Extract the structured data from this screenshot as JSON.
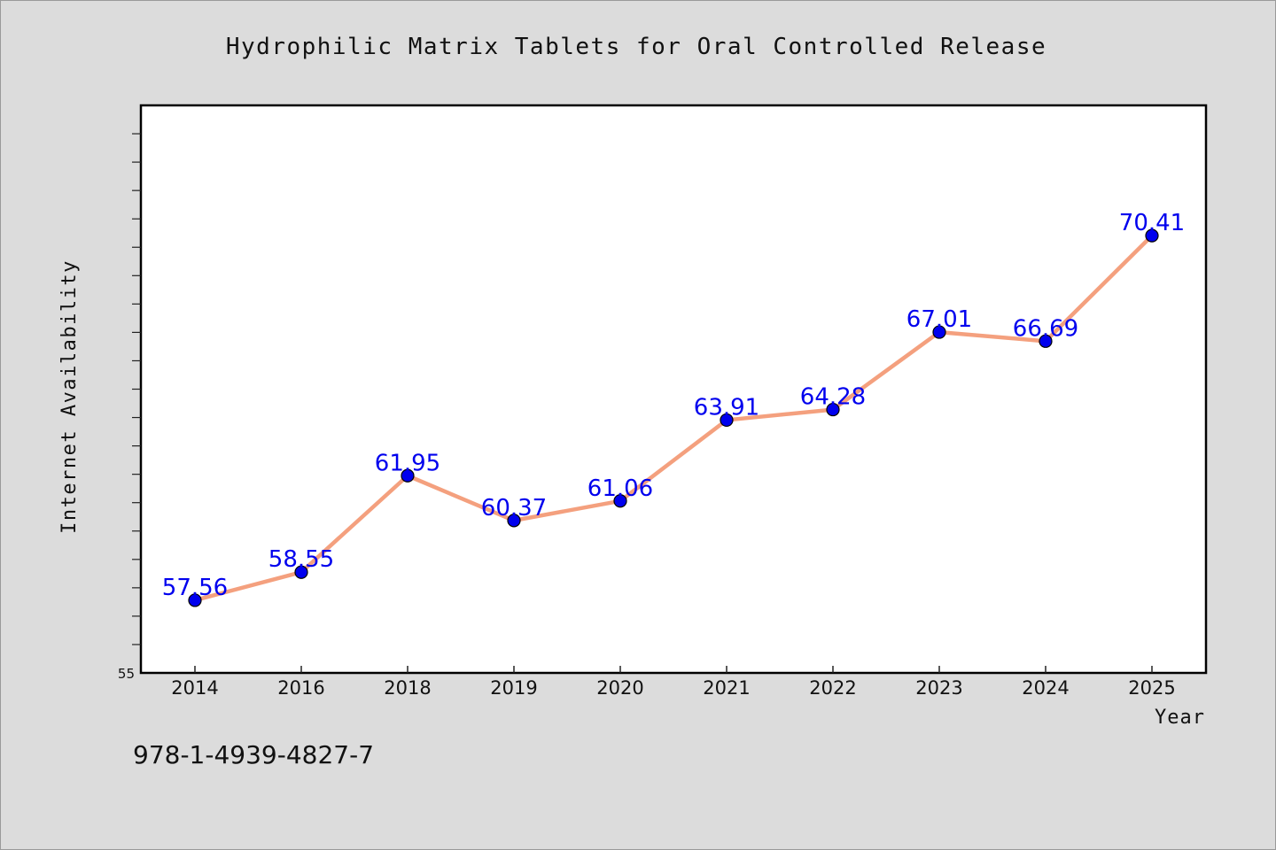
{
  "chart_data": {
    "type": "line",
    "title": "Hydrophilic Matrix Tablets for Oral Controlled Release",
    "xlabel": "Year",
    "ylabel": "Internet Availability",
    "categories": [
      "2014",
      "2016",
      "2018",
      "2019",
      "2020",
      "2021",
      "2022",
      "2023",
      "2024",
      "2025"
    ],
    "series": [
      {
        "values": [
          57.56,
          58.55,
          61.95,
          60.37,
          61.06,
          63.91,
          64.28,
          67.01,
          66.69,
          70.41
        ],
        "labels": [
          "57.56",
          "58.55",
          "61.95",
          "60.37",
          "61.06",
          "63.91",
          "64.28",
          "67.01",
          "66.69",
          "70.41"
        ]
      }
    ],
    "y_tick_label": "55",
    "ylim": [
      55,
      75
    ],
    "grid": false,
    "line_color": "#f4a07e",
    "marker_color": "#0000ee",
    "label_color": "#0000ee"
  },
  "footer": {
    "isbn": "978-1-4939-4827-7"
  }
}
